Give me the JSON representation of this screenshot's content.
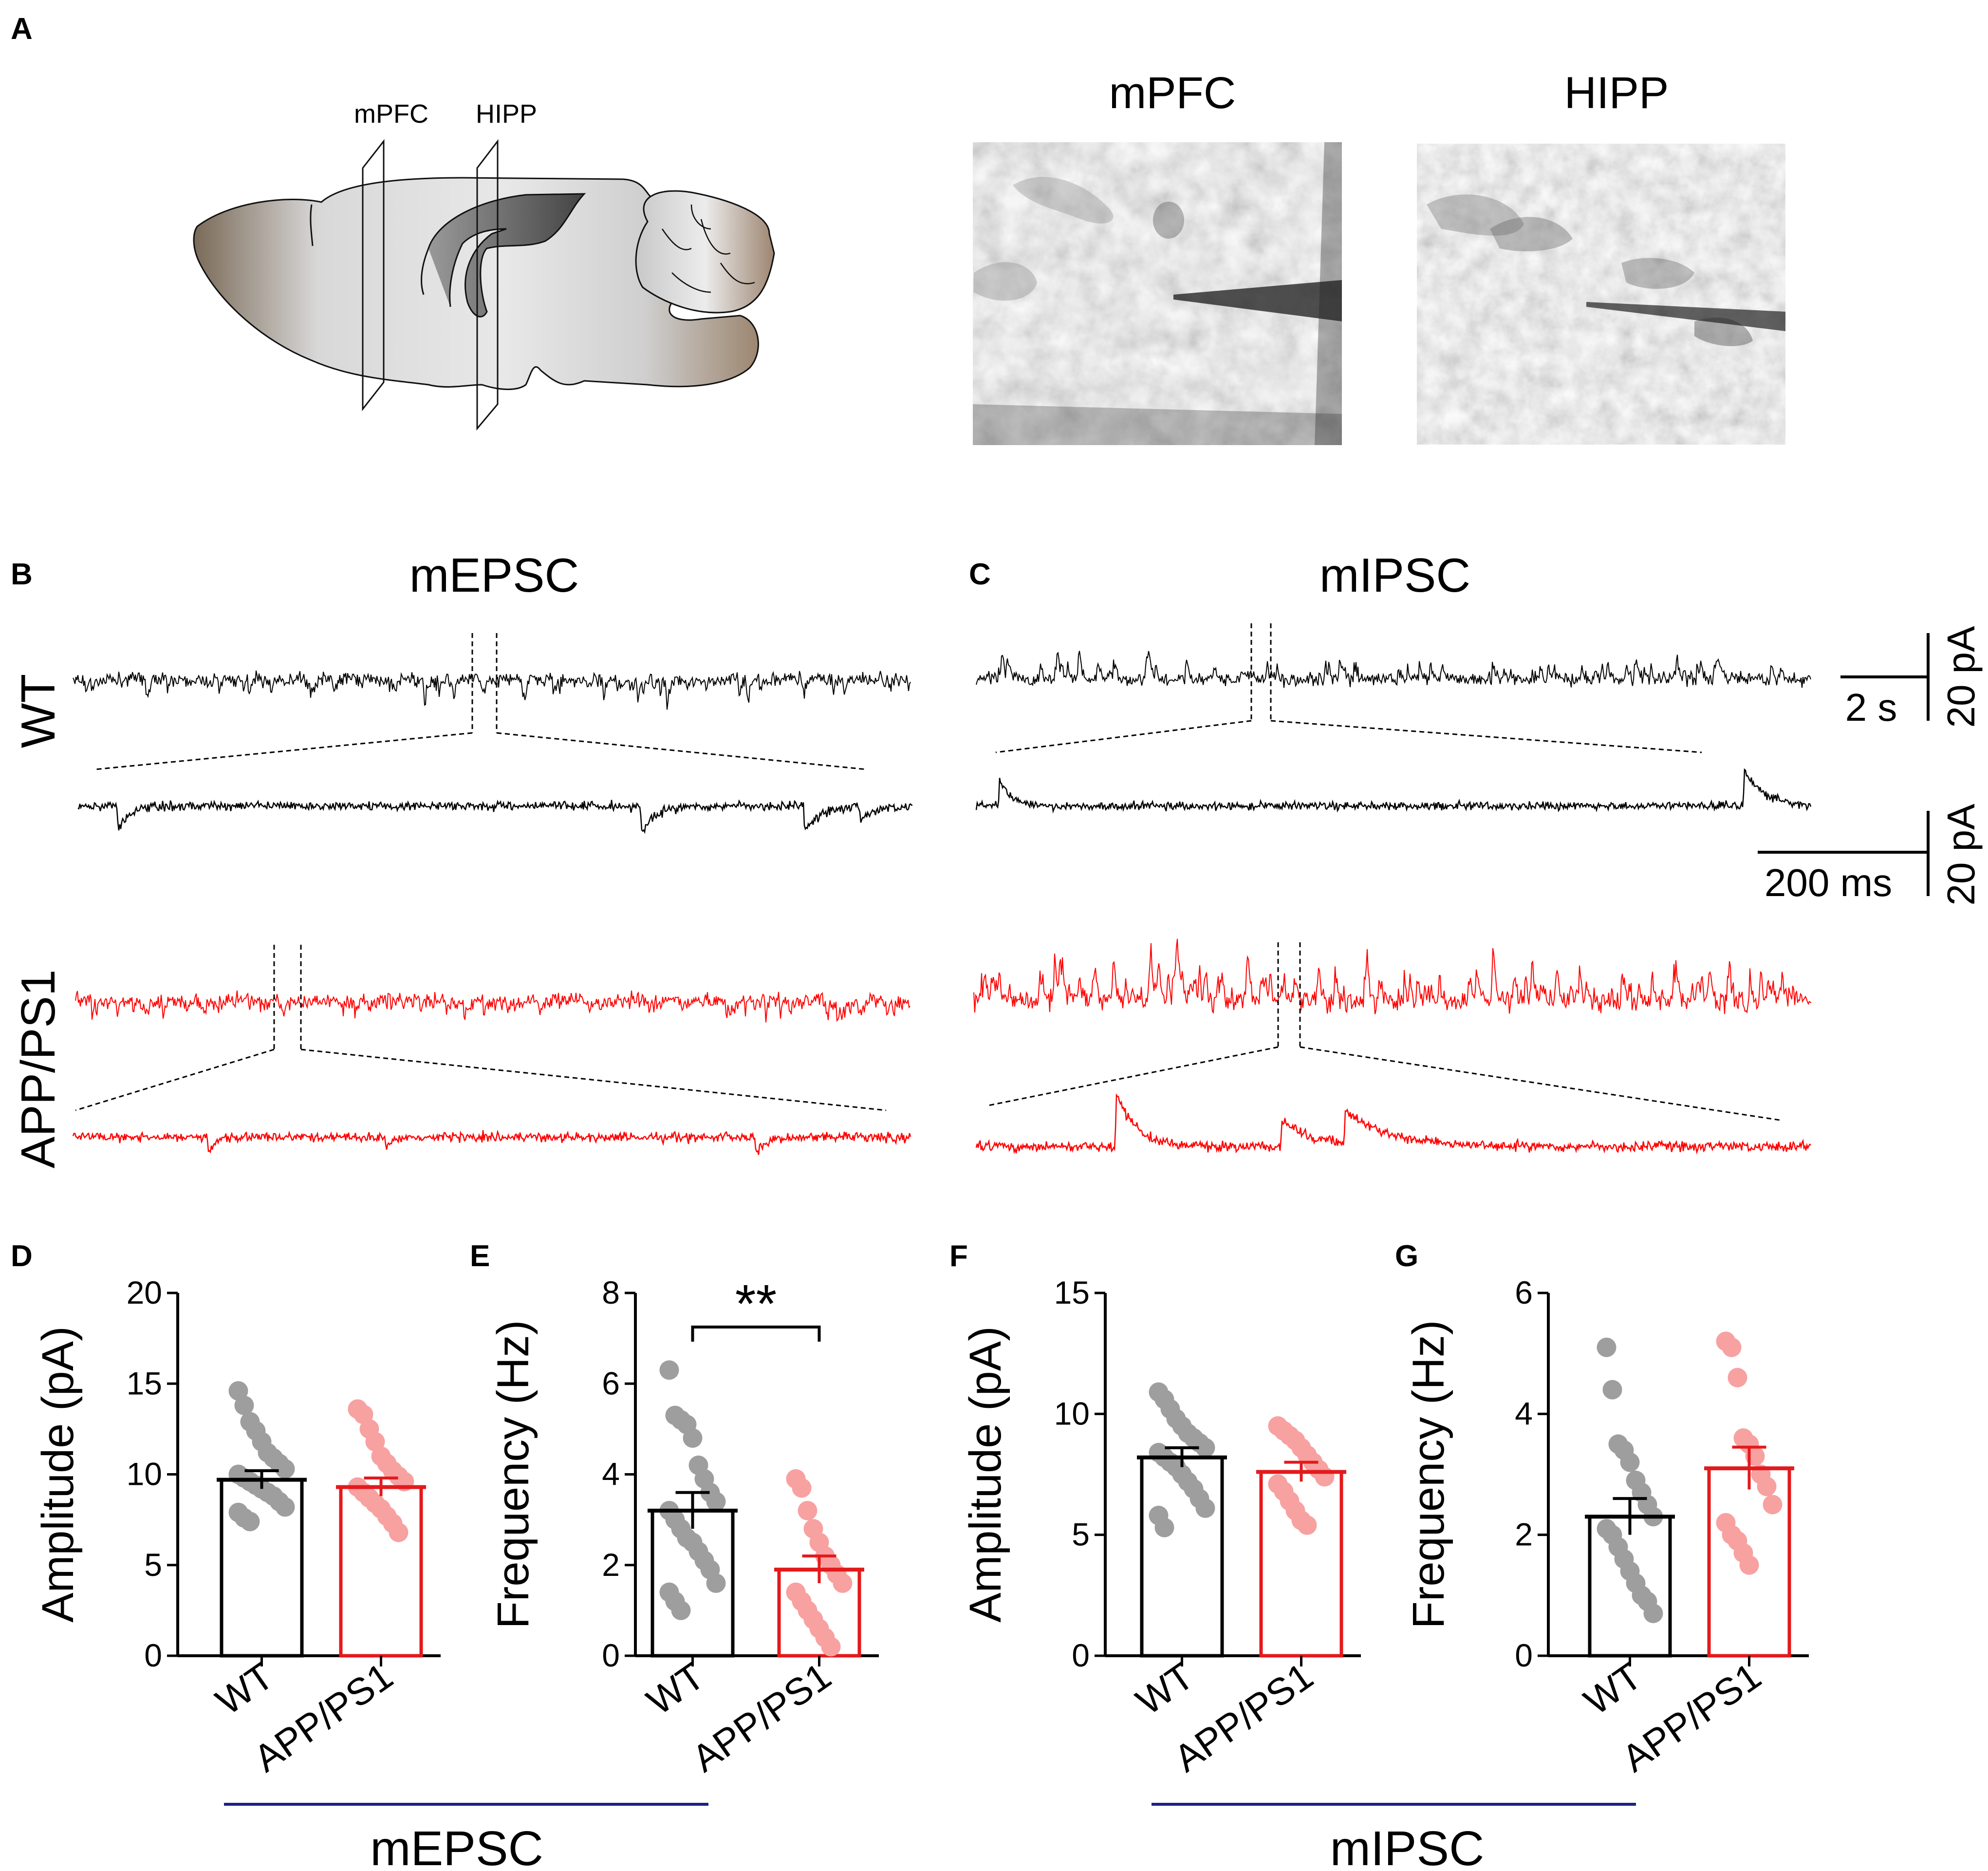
{
  "panels": {
    "A": "A",
    "B": "B",
    "C": "C",
    "D": "D",
    "E": "E",
    "F": "F",
    "G": "G"
  },
  "panel_a": {
    "slice_labels": [
      "mPFC",
      "HIPP"
    ],
    "image_titles": [
      "mPFC",
      "HIPP"
    ]
  },
  "traces": {
    "title_mepsc": "mEPSC",
    "title_mipsc": "mIPSC",
    "row_wt": "WT",
    "row_app": "APP/PS1",
    "scale_top_time": "2 s",
    "scale_top_amp": "20 pA",
    "scale_bottom_time": "200 ms",
    "scale_bottom_amp": "20 pA",
    "color_wt": "#000000",
    "color_app": "#ff0000"
  },
  "group_labels": {
    "left": "mEPSC",
    "right": "mIPSC",
    "underline_color": "#1a237e"
  },
  "chart_data": [
    {
      "id": "D",
      "type": "bar",
      "ylabel": "Amplitude (pA)",
      "ylim": [
        0,
        20
      ],
      "yticks": [
        0,
        5,
        10,
        15,
        20
      ],
      "categories": [
        "WT",
        "APP/PS1"
      ],
      "values": [
        9.7,
        9.3
      ],
      "sem": [
        0.5,
        0.5
      ],
      "significance": "",
      "points": [
        [
          14.6,
          13.8,
          12.9,
          12.4,
          11.8,
          11.2,
          10.9,
          10.6,
          10.3,
          10.0,
          9.8,
          9.6,
          9.4,
          9.2,
          9.0,
          8.8,
          8.5,
          8.2,
          7.9,
          7.6,
          7.4
        ],
        [
          13.6,
          13.3,
          12.5,
          11.8,
          11.0,
          10.6,
          10.2,
          9.9,
          9.6,
          9.3,
          9.0,
          8.7,
          8.4,
          8.1,
          7.7,
          7.3,
          6.8
        ]
      ],
      "colors": {
        "bar_wt": "#000000",
        "bar_app": "#e31a1c",
        "dot_wt": "#9e9e9e",
        "dot_app": "#f7a1a1"
      }
    },
    {
      "id": "E",
      "type": "bar",
      "ylabel": "Frequency (Hz)",
      "ylim": [
        0,
        8
      ],
      "yticks": [
        0,
        2,
        4,
        6,
        8
      ],
      "categories": [
        "WT",
        "APP/PS1"
      ],
      "values": [
        3.2,
        1.9
      ],
      "sem": [
        0.4,
        0.3
      ],
      "significance": "**",
      "points": [
        [
          6.3,
          5.3,
          5.2,
          5.1,
          4.8,
          4.2,
          3.9,
          3.6,
          3.4,
          3.2,
          3.0,
          2.8,
          2.6,
          2.5,
          2.3,
          2.1,
          1.9,
          1.6,
          1.4,
          1.2,
          1.0
        ],
        [
          3.9,
          3.7,
          3.2,
          2.8,
          2.5,
          2.2,
          2.0,
          1.8,
          1.6,
          1.4,
          1.2,
          1.0,
          0.8,
          0.6,
          0.4,
          0.2
        ]
      ],
      "colors": {
        "bar_wt": "#000000",
        "bar_app": "#e31a1c",
        "dot_wt": "#9e9e9e",
        "dot_app": "#f7a1a1"
      }
    },
    {
      "id": "F",
      "type": "bar",
      "ylabel": "Amplitude (pA)",
      "ylim": [
        0,
        15
      ],
      "yticks": [
        0,
        5,
        10,
        15
      ],
      "categories": [
        "WT",
        "APP/PS1"
      ],
      "values": [
        8.2,
        7.6
      ],
      "sem": [
        0.4,
        0.4
      ],
      "significance": "",
      "points": [
        [
          10.9,
          10.6,
          10.2,
          9.8,
          9.5,
          9.2,
          9.0,
          8.8,
          8.6,
          8.4,
          8.2,
          8.0,
          7.8,
          7.5,
          7.2,
          6.9,
          6.5,
          6.1,
          5.8,
          5.3
        ],
        [
          9.5,
          9.3,
          9.1,
          8.9,
          8.6,
          8.3,
          8.0,
          7.7,
          7.4,
          7.1,
          6.8,
          6.4,
          6.0,
          5.6,
          5.4
        ]
      ],
      "colors": {
        "bar_wt": "#000000",
        "bar_app": "#e31a1c",
        "dot_wt": "#9e9e9e",
        "dot_app": "#f7a1a1"
      }
    },
    {
      "id": "G",
      "type": "bar",
      "ylabel": "Frequency (Hz)",
      "ylim": [
        0,
        6
      ],
      "yticks": [
        0,
        2,
        4,
        6
      ],
      "categories": [
        "WT",
        "APP/PS1"
      ],
      "values": [
        2.3,
        3.1
      ],
      "sem": [
        0.3,
        0.35
      ],
      "significance": "",
      "points": [
        [
          5.1,
          4.4,
          3.5,
          3.4,
          3.2,
          2.9,
          2.7,
          2.5,
          2.3,
          2.1,
          2.0,
          1.8,
          1.6,
          1.4,
          1.2,
          1.0,
          0.9,
          0.7
        ],
        [
          5.2,
          5.1,
          4.6,
          3.6,
          3.5,
          3.3,
          3.0,
          2.8,
          2.5,
          2.2,
          2.0,
          1.9,
          1.7,
          1.5
        ]
      ],
      "colors": {
        "bar_wt": "#000000",
        "bar_app": "#e31a1c",
        "dot_wt": "#9e9e9e",
        "dot_app": "#f7a1a1"
      }
    }
  ]
}
